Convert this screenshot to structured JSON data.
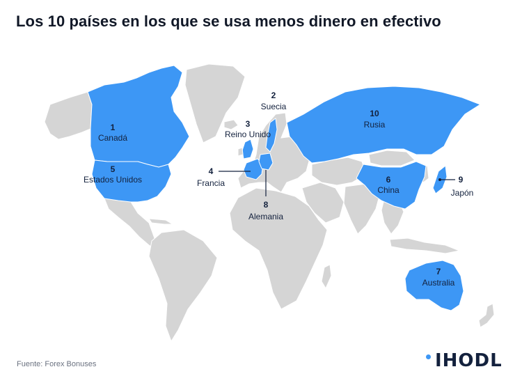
{
  "title": "Los 10 países en los que se usa menos dinero en efectivo",
  "source": "Fuente: Forex Bonuses",
  "brand": "IHODL",
  "colors": {
    "highlight": "#3d97f5",
    "land": "#d5d5d5",
    "text": "#13213d"
  },
  "countries": [
    {
      "rank": "1",
      "name": "Canadá"
    },
    {
      "rank": "2",
      "name": "Suecia"
    },
    {
      "rank": "3",
      "name": "Reino Unido"
    },
    {
      "rank": "4",
      "name": "Francia"
    },
    {
      "rank": "5",
      "name": "Estados Unidos"
    },
    {
      "rank": "6",
      "name": "China"
    },
    {
      "rank": "7",
      "name": "Australia"
    },
    {
      "rank": "8",
      "name": "Alemania"
    },
    {
      "rank": "9",
      "name": "Japón"
    },
    {
      "rank": "10",
      "name": "Rusia"
    }
  ]
}
